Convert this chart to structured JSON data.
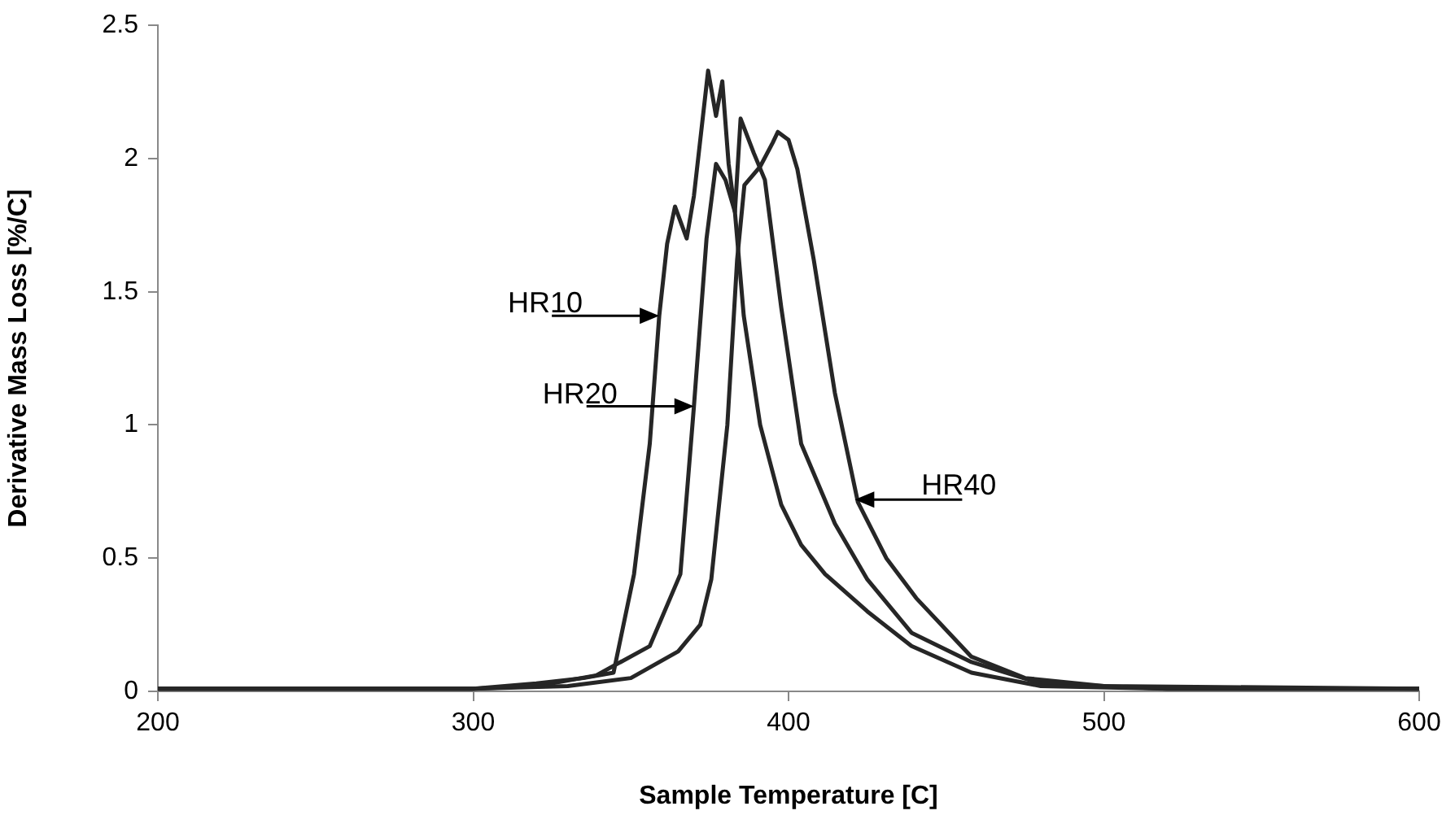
{
  "chart_data": {
    "type": "line",
    "xlabel": "Sample Temperature [C]",
    "ylabel": "Derivative Mass Loss [%/C]",
    "xlim": [
      200,
      600
    ],
    "xticks": [
      200,
      300,
      400,
      500,
      600
    ],
    "ylim": [
      0,
      2.5
    ],
    "yticks": [
      0,
      0.5,
      1,
      1.5,
      2,
      2.5
    ],
    "grid": false,
    "legend": false,
    "marker": "none",
    "line_style": "solid",
    "series": [
      {
        "color": "#262626",
        "x": [
          200,
          250,
          300,
          320,
          335,
          344.5,
          351,
          356,
          359,
          361.5,
          364,
          367.7,
          370,
          374.5,
          377,
          379,
          381,
          383,
          385.8,
          391,
          397.7,
          404,
          411.6,
          425,
          439,
          458,
          480,
          520,
          600
        ],
        "values": [
          0.01,
          0.01,
          0.01,
          0.03,
          0.05,
          0.07,
          0.44,
          0.93,
          1.41,
          1.68,
          1.82,
          1.7,
          1.86,
          2.33,
          2.16,
          2.29,
          1.98,
          1.8,
          1.41,
          1.0,
          0.7,
          0.55,
          0.44,
          0.3,
          0.17,
          0.07,
          0.02,
          0.01,
          0.01
        ]
      },
      {
        "color": "#262626",
        "x": [
          200,
          250,
          300,
          320,
          339,
          356,
          365.7,
          370,
          374,
          377,
          380,
          383,
          384.8,
          389,
          392.5,
          397.7,
          404,
          414.7,
          425,
          439,
          458,
          480,
          520,
          600
        ],
        "values": [
          0.01,
          0.01,
          0.01,
          0.02,
          0.06,
          0.17,
          0.44,
          1.07,
          1.7,
          1.98,
          1.92,
          1.8,
          2.15,
          2.02,
          1.92,
          1.44,
          0.93,
          0.63,
          0.42,
          0.22,
          0.11,
          0.03,
          0.01,
          0.01
        ]
      },
      {
        "color": "#262626",
        "x": [
          200,
          250,
          300,
          330,
          350,
          365,
          372,
          375.5,
          380.6,
          383.7,
          386,
          391,
          395,
          396.6,
          400,
          402.8,
          408,
          414.7,
          422,
          431,
          440.5,
          458,
          475,
          500,
          600
        ],
        "values": [
          0.01,
          0.01,
          0.01,
          0.02,
          0.05,
          0.15,
          0.25,
          0.42,
          1.0,
          1.62,
          1.9,
          1.97,
          2.06,
          2.1,
          2.07,
          1.96,
          1.62,
          1.12,
          0.71,
          0.5,
          0.35,
          0.13,
          0.05,
          0.02,
          0.01
        ]
      }
    ],
    "annotations": [
      {
        "text": "HR10",
        "x": 359,
        "y": 1.41
      },
      {
        "text": "HR20",
        "x": 370,
        "y": 1.07
      },
      {
        "text": "HR40",
        "x": 421,
        "y": 0.72
      }
    ]
  }
}
